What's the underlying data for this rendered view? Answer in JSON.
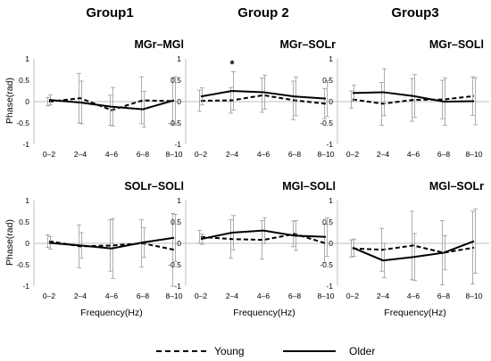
{
  "groups": [
    "Group1",
    "Group 2",
    "Group3"
  ],
  "ylabel": "Phase(rad)",
  "xlabel": "Frequency(Hz)",
  "legend": {
    "young": "Young",
    "older": "Older"
  },
  "colors": {
    "line": "#000000",
    "axis": "#bfbfbf",
    "error": "#9a9a9a"
  },
  "chart_data": [
    {
      "type": "line",
      "title": "MGr–MGl",
      "categories": [
        "0–2",
        "2–4",
        "4–6",
        "6–8",
        "8–10"
      ],
      "ylim": [
        -1,
        1
      ],
      "yticks": [
        "1",
        "0.5",
        "0",
        "-0.5",
        "-1"
      ],
      "series": [
        {
          "name": "Young",
          "style": "dashed",
          "values": [
            0.0,
            0.08,
            -0.2,
            0.03,
            0.01
          ],
          "err": [
            0.1,
            0.58,
            0.35,
            0.55,
            0.55
          ]
        },
        {
          "name": "Older",
          "style": "solid",
          "values": [
            0.04,
            -0.02,
            -0.12,
            -0.18,
            0.03
          ],
          "err": [
            0.12,
            0.5,
            0.45,
            0.42,
            0.55
          ]
        }
      ]
    },
    {
      "type": "line",
      "title": "MGr–SOLr",
      "categories": [
        "0–2",
        "2–4",
        "4–6",
        "6–8",
        "8–10"
      ],
      "ylim": [
        -1,
        1
      ],
      "yticks": [
        "1",
        "0.5",
        "0",
        "-0.5",
        "-1"
      ],
      "annotation": {
        "text": "*",
        "category_index": 1
      },
      "series": [
        {
          "name": "Young",
          "style": "dashed",
          "values": [
            0.02,
            0.03,
            0.15,
            0.03,
            -0.05
          ],
          "err": [
            0.25,
            0.3,
            0.4,
            0.45,
            0.35
          ]
        },
        {
          "name": "Older",
          "style": "solid",
          "values": [
            0.12,
            0.25,
            0.22,
            0.12,
            0.07
          ],
          "err": [
            0.2,
            0.45,
            0.4,
            0.45,
            0.42
          ]
        }
      ]
    },
    {
      "type": "line",
      "title": "MGr–SOLl",
      "categories": [
        "0–2",
        "2–4",
        "4–6",
        "6–8",
        "8–10"
      ],
      "ylim": [
        -1,
        1
      ],
      "yticks": [
        "1",
        "0.5",
        "0",
        "-0.5",
        "-1"
      ],
      "series": [
        {
          "name": "Young",
          "style": "dashed",
          "values": [
            0.05,
            -0.05,
            0.04,
            0.05,
            0.13
          ],
          "err": [
            0.2,
            0.5,
            0.5,
            0.45,
            0.45
          ]
        },
        {
          "name": "Older",
          "style": "solid",
          "values": [
            0.2,
            0.22,
            0.13,
            0.0,
            0.01
          ],
          "err": [
            0.18,
            0.55,
            0.5,
            0.55,
            0.55
          ]
        }
      ]
    },
    {
      "type": "line",
      "title": "SOLr–SOLl",
      "categories": [
        "0–2",
        "2–4",
        "4–6",
        "6–8",
        "8–10"
      ],
      "ylim": [
        -1,
        1
      ],
      "yticks": [
        "1",
        "0.5",
        "0",
        "-0.5",
        "-1"
      ],
      "series": [
        {
          "name": "Young",
          "style": "dashed",
          "values": [
            0.05,
            -0.07,
            -0.05,
            0.0,
            -0.15
          ],
          "err": [
            0.15,
            0.5,
            0.6,
            0.55,
            0.85
          ]
        },
        {
          "name": "Older",
          "style": "solid",
          "values": [
            0.01,
            -0.05,
            -0.12,
            0.02,
            0.13
          ],
          "err": [
            0.15,
            0.3,
            0.7,
            0.35,
            0.55
          ]
        }
      ]
    },
    {
      "type": "line",
      "title": "MGl–SOLl",
      "categories": [
        "0–2",
        "2–4",
        "4–6",
        "6–8",
        "8–10"
      ],
      "ylim": [
        -1,
        1
      ],
      "yticks": [
        "1",
        "0.5",
        "0",
        "-0.5",
        "-1"
      ],
      "series": [
        {
          "name": "Young",
          "style": "dashed",
          "values": [
            0.15,
            0.1,
            0.08,
            0.22,
            0.0
          ],
          "err": [
            0.15,
            0.45,
            0.45,
            0.3,
            0.45
          ]
        },
        {
          "name": "Older",
          "style": "solid",
          "values": [
            0.1,
            0.25,
            0.3,
            0.18,
            0.15
          ],
          "err": [
            0.12,
            0.4,
            0.3,
            0.35,
            0.45
          ]
        }
      ]
    },
    {
      "type": "line",
      "title": "MGl–SOLr",
      "categories": [
        "0–2",
        "2–4",
        "4–6",
        "6–8",
        "8–10"
      ],
      "ylim": [
        -1,
        1
      ],
      "yticks": [
        "1",
        "0.5",
        "0",
        "-0.5",
        "-1"
      ],
      "series": [
        {
          "name": "Young",
          "style": "dashed",
          "values": [
            -0.12,
            -0.15,
            -0.05,
            -0.22,
            -0.1
          ],
          "err": [
            0.2,
            0.5,
            0.8,
            0.75,
            0.85
          ]
        },
        {
          "name": "Older",
          "style": "solid",
          "values": [
            -0.1,
            -0.4,
            -0.32,
            -0.22,
            0.05
          ],
          "err": [
            0.2,
            0.4,
            0.55,
            0.4,
            0.75
          ]
        }
      ]
    }
  ]
}
